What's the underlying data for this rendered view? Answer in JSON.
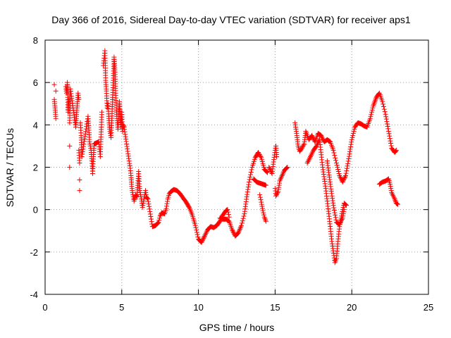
{
  "chart_data": {
    "type": "scatter",
    "title": "Day 366 of 2016, Sidereal Day-to-day VTEC variation (SDTVAR) for receiver aps1",
    "xlabel": "GPS time / hours",
    "ylabel": "SDTVAR / TECUs",
    "xlim": [
      0,
      25
    ],
    "ylim": [
      -4,
      8
    ],
    "xticks": [
      0,
      5,
      10,
      15,
      20,
      25
    ],
    "yticks": [
      -4,
      -2,
      0,
      2,
      4,
      6,
      8
    ],
    "grid": true,
    "marker": "+",
    "color": "#ff0000",
    "series": [
      {
        "name": "aps1",
        "points": [
          [
            0.6,
            5.9
          ],
          [
            0.6,
            5.2
          ],
          [
            0.65,
            4.8
          ],
          [
            0.7,
            4.3
          ],
          [
            0.7,
            5.6
          ],
          [
            1.35,
            5.8
          ],
          [
            1.4,
            5.5
          ],
          [
            1.45,
            6.0
          ],
          [
            1.5,
            4.6
          ],
          [
            1.55,
            5.2
          ],
          [
            1.6,
            3.0
          ],
          [
            1.6,
            2.0
          ],
          [
            1.6,
            4.1
          ],
          [
            1.65,
            5.7
          ],
          [
            2.0,
            3.9
          ],
          [
            2.05,
            4.5
          ],
          [
            2.1,
            5.0
          ],
          [
            2.15,
            5.5
          ],
          [
            2.2,
            5.2
          ],
          [
            2.2,
            2.8
          ],
          [
            2.25,
            2.2
          ],
          [
            2.25,
            1.4
          ],
          [
            2.25,
            0.9
          ],
          [
            2.3,
            4.1
          ],
          [
            2.35,
            3.5
          ],
          [
            2.4,
            2.5
          ],
          [
            2.8,
            4.4
          ],
          [
            2.9,
            3.2
          ],
          [
            3.0,
            2.8
          ],
          [
            3.05,
            2.3
          ],
          [
            3.1,
            1.7
          ],
          [
            3.15,
            2.5
          ],
          [
            3.2,
            3.1
          ],
          [
            3.5,
            3.2
          ],
          [
            3.6,
            2.5
          ],
          [
            3.7,
            4.6
          ],
          [
            3.8,
            6.8
          ],
          [
            3.9,
            7.5
          ],
          [
            3.95,
            6.1
          ],
          [
            4.0,
            5.6
          ],
          [
            4.05,
            4.8
          ],
          [
            4.1,
            5.0
          ],
          [
            4.15,
            4.4
          ],
          [
            4.2,
            3.9
          ],
          [
            4.25,
            3.6
          ],
          [
            4.3,
            3.4
          ],
          [
            4.35,
            4.2
          ],
          [
            4.4,
            5.3
          ],
          [
            4.45,
            6.1
          ],
          [
            4.5,
            7.2
          ],
          [
            4.55,
            6.6
          ],
          [
            4.6,
            5.5
          ],
          [
            4.65,
            4.7
          ],
          [
            4.7,
            4.2
          ],
          [
            4.75,
            3.8
          ],
          [
            4.8,
            4.3
          ],
          [
            4.85,
            5.1
          ],
          [
            4.9,
            4.5
          ],
          [
            4.95,
            3.9
          ],
          [
            5.0,
            4.6
          ],
          [
            5.05,
            3.7
          ],
          [
            5.1,
            4.0
          ],
          [
            5.15,
            3.9
          ],
          [
            5.55,
            1.95
          ],
          [
            5.6,
            1.6
          ],
          [
            5.65,
            1.1
          ],
          [
            5.7,
            0.8
          ],
          [
            5.75,
            0.6
          ],
          [
            5.8,
            0.4
          ],
          [
            5.85,
            0.55
          ],
          [
            5.9,
            0.7
          ],
          [
            6.0,
            0.6
          ],
          [
            6.1,
            1.8
          ],
          [
            6.15,
            1.1
          ],
          [
            6.2,
            0.8
          ],
          [
            6.3,
            0.4
          ],
          [
            6.35,
            0.1
          ],
          [
            6.4,
            0.3
          ],
          [
            6.5,
            0.7
          ],
          [
            6.55,
            0.9
          ],
          [
            6.6,
            0.6
          ],
          [
            6.7,
            0.5
          ],
          [
            7.0,
            -0.8
          ],
          [
            7.2,
            -0.75
          ],
          [
            7.4,
            -0.6
          ],
          [
            7.5,
            -0.3
          ],
          [
            7.6,
            -0.15
          ],
          [
            7.8,
            -0.2
          ],
          [
            7.9,
            0.05
          ],
          [
            8.0,
            0.5
          ],
          [
            8.1,
            0.75
          ],
          [
            8.2,
            0.85
          ],
          [
            8.4,
            0.95
          ],
          [
            8.6,
            0.9
          ],
          [
            8.8,
            0.75
          ],
          [
            9.0,
            0.55
          ],
          [
            9.2,
            0.35
          ],
          [
            9.4,
            0.1
          ],
          [
            9.6,
            -0.25
          ],
          [
            9.8,
            -0.75
          ],
          [
            10.0,
            -1.4
          ],
          [
            10.2,
            -1.55
          ],
          [
            10.4,
            -1.25
          ],
          [
            10.6,
            -0.95
          ],
          [
            10.8,
            -0.8
          ],
          [
            11.0,
            -0.85
          ],
          [
            11.2,
            -0.75
          ],
          [
            11.4,
            -0.55
          ],
          [
            11.55,
            -0.3
          ],
          [
            11.7,
            -0.15
          ],
          [
            11.8,
            -0.05
          ],
          [
            11.9,
            0.0
          ],
          [
            12.0,
            -0.35
          ],
          [
            11.4,
            -0.4
          ],
          [
            11.6,
            -0.45
          ],
          [
            11.8,
            -0.45
          ],
          [
            12.0,
            -0.55
          ],
          [
            12.2,
            -0.95
          ],
          [
            12.4,
            -1.25
          ],
          [
            12.6,
            -1.1
          ],
          [
            12.8,
            -0.75
          ],
          [
            13.0,
            -0.2
          ],
          [
            13.15,
            0.6
          ],
          [
            13.3,
            1.3
          ],
          [
            13.5,
            2.0
          ],
          [
            13.7,
            2.45
          ],
          [
            13.9,
            2.7
          ],
          [
            14.1,
            2.45
          ],
          [
            14.3,
            1.9
          ],
          [
            14.5,
            1.75
          ],
          [
            13.6,
            1.45
          ],
          [
            13.8,
            1.3
          ],
          [
            14.0,
            1.25
          ],
          [
            14.2,
            1.2
          ],
          [
            14.4,
            1.15
          ],
          [
            14.0,
            0.7
          ],
          [
            14.1,
            0.35
          ],
          [
            14.2,
            -0.05
          ],
          [
            14.3,
            -0.35
          ],
          [
            14.4,
            -0.55
          ],
          [
            14.6,
            2.0
          ],
          [
            14.8,
            1.7
          ],
          [
            15.0,
            2.8
          ],
          [
            15.05,
            3.0
          ],
          [
            15.1,
            2.5
          ],
          [
            15.0,
            1.0
          ],
          [
            15.05,
            0.65
          ],
          [
            15.2,
            0.85
          ],
          [
            15.3,
            1.35
          ],
          [
            15.45,
            1.6
          ],
          [
            15.6,
            1.85
          ],
          [
            15.8,
            2.0
          ],
          [
            16.3,
            4.1
          ],
          [
            16.4,
            3.6
          ],
          [
            16.5,
            3.0
          ],
          [
            16.6,
            2.75
          ],
          [
            16.7,
            2.85
          ],
          [
            16.9,
            3.1
          ],
          [
            17.0,
            3.7
          ],
          [
            17.2,
            3.3
          ],
          [
            17.4,
            3.5
          ],
          [
            17.6,
            3.2
          ],
          [
            17.8,
            3.6
          ],
          [
            18.0,
            3.5
          ],
          [
            18.2,
            3.2
          ],
          [
            18.4,
            3.3
          ],
          [
            18.6,
            3.2
          ],
          [
            18.8,
            2.8
          ],
          [
            19.0,
            2.2
          ],
          [
            19.2,
            1.6
          ],
          [
            19.4,
            1.3
          ],
          [
            19.6,
            1.6
          ],
          [
            19.8,
            2.4
          ],
          [
            20.0,
            3.3
          ],
          [
            20.2,
            3.9
          ],
          [
            20.4,
            4.1
          ],
          [
            20.6,
            4.05
          ],
          [
            20.8,
            3.95
          ],
          [
            21.0,
            3.9
          ],
          [
            21.2,
            4.3
          ],
          [
            21.4,
            4.9
          ],
          [
            21.6,
            5.3
          ],
          [
            21.8,
            5.5
          ],
          [
            22.0,
            5.1
          ],
          [
            22.2,
            4.5
          ],
          [
            22.4,
            3.7
          ],
          [
            22.6,
            2.9
          ],
          [
            22.8,
            2.7
          ],
          [
            22.9,
            2.8
          ],
          [
            17.1,
            2.2
          ],
          [
            17.3,
            2.5
          ],
          [
            17.5,
            2.8
          ],
          [
            17.7,
            3.0
          ],
          [
            17.9,
            3.3
          ],
          [
            18.1,
            2.0
          ],
          [
            18.3,
            1.0
          ],
          [
            18.5,
            -0.2
          ],
          [
            18.7,
            -1.5
          ],
          [
            18.9,
            -2.5
          ],
          [
            19.0,
            -2.3
          ],
          [
            19.1,
            -1.5
          ],
          [
            19.2,
            -0.8
          ],
          [
            19.35,
            -0.2
          ],
          [
            19.5,
            0.3
          ],
          [
            19.65,
            0.2
          ],
          [
            18.4,
            2.3
          ],
          [
            18.6,
            1.2
          ],
          [
            18.8,
            0.2
          ],
          [
            19.0,
            -0.6
          ],
          [
            19.2,
            -0.7
          ],
          [
            19.4,
            -0.4
          ],
          [
            19.5,
            0.0
          ],
          [
            21.8,
            1.2
          ],
          [
            22.0,
            1.3
          ],
          [
            22.2,
            1.35
          ],
          [
            22.4,
            1.45
          ],
          [
            22.5,
            1.2
          ],
          [
            22.6,
            0.8
          ],
          [
            22.8,
            0.5
          ],
          [
            22.9,
            0.3
          ],
          [
            23.0,
            0.25
          ]
        ]
      }
    ]
  }
}
